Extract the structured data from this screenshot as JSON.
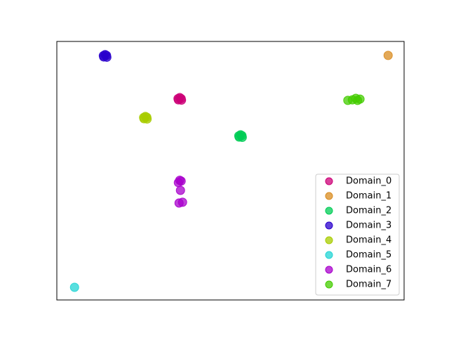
{
  "chart_data": {
    "type": "scatter",
    "xlim": [
      0,
      100
    ],
    "ylim": [
      0,
      100
    ],
    "legend": "lower right",
    "series": [
      {
        "name": "Domain_0",
        "color": "#cc0077",
        "x": [
          35.0,
          35.8,
          35.4,
          34.9,
          35.9
        ],
        "y": [
          77.4,
          77.9,
          78.3,
          77.9,
          77.3
        ]
      },
      {
        "name": "Domain_1",
        "color": "#d98c20",
        "x": [
          95.4
        ],
        "y": [
          94.6
        ]
      },
      {
        "name": "Domain_2",
        "color": "#00cc55",
        "x": [
          52.5,
          53.3,
          52.9,
          52.4,
          53.4
        ],
        "y": [
          63.0,
          63.6,
          63.9,
          63.5,
          62.9
        ]
      },
      {
        "name": "Domain_3",
        "color": "#2a00cc",
        "x": [
          13.5,
          14.3,
          13.9,
          13.4,
          14.4
        ],
        "y": [
          94.0,
          94.6,
          94.9,
          94.5,
          93.9
        ]
      },
      {
        "name": "Domain_4",
        "color": "#a8cc00",
        "x": [
          25.1,
          25.9,
          25.5,
          25.0,
          26.0
        ],
        "y": [
          70.1,
          70.7,
          71.0,
          70.6,
          70.0
        ]
      },
      {
        "name": "Domain_5",
        "color": "#22d4d4",
        "x": [
          5.1
        ],
        "y": [
          4.9
        ]
      },
      {
        "name": "Domain_6",
        "color": "#a800cc",
        "x": [
          35.0,
          35.8,
          35.4,
          35.6,
          35.2,
          36.2
        ],
        "y": [
          45.4,
          46.0,
          46.3,
          42.4,
          37.5,
          37.8
        ]
      },
      {
        "name": "Domain_7",
        "color": "#44cc00",
        "x": [
          86.1,
          83.8,
          87.3,
          85.1,
          86.6
        ],
        "y": [
          78.0,
          77.2,
          77.7,
          77.4,
          77.2
        ]
      }
    ]
  }
}
